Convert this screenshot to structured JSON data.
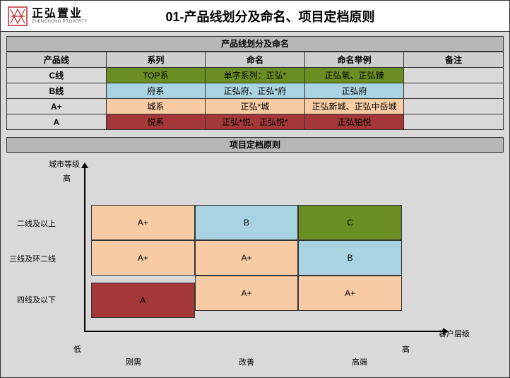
{
  "header": {
    "logo_cn": "正弘置业",
    "logo_en": "ZHENGHONG PROPERTY",
    "title": "01-产品线划分及命名、项目定档原则"
  },
  "colors": {
    "green": "#6b8e23",
    "blue": "#a9d3e0",
    "peach": "#f7cba3",
    "darkred": "#a43838",
    "grey_bg": "#d9d9d9",
    "header_grey": "#b7b7b7",
    "th_grey": "#cfcfcf",
    "logo_red": "#c1272d"
  },
  "section1": {
    "title": "产品线划分及命名",
    "headers": [
      "产品线",
      "系列",
      "命名",
      "命名举例",
      "备注"
    ],
    "rows": [
      {
        "line": "C线",
        "series": "TOP系",
        "naming": "单字系列：正弘*",
        "example": "正弘氧、正弘臻",
        "note": "",
        "color": "green"
      },
      {
        "line": "B线",
        "series": "府系",
        "naming": "正弘府、正弘*府",
        "example": "正弘府",
        "note": "",
        "color": "blue"
      },
      {
        "line": "A+",
        "series": "城系",
        "naming": "正弘*城",
        "example": "正弘新城、正弘中岳城",
        "note": "",
        "color": "peach"
      },
      {
        "line": "A",
        "series": "悦系",
        "naming": "正弘*悦、正弘悦*",
        "example": "正弘铂悦",
        "note": "",
        "color": "darkred"
      }
    ]
  },
  "section2": {
    "title": "项目定档原则",
    "y_axis_title": "城市等级",
    "x_axis_title": "客户层级",
    "y_high": "高",
    "x_low": "低",
    "x_high": "高",
    "y_labels": [
      "二线及以上",
      "三线及环二线",
      "四线及以下"
    ],
    "x_labels": [
      "刚需",
      "改善",
      "高端"
    ],
    "grid": [
      [
        {
          "t": "A+",
          "c": "peach"
        },
        {
          "t": "B",
          "c": "blue"
        },
        {
          "t": "C",
          "c": "green"
        }
      ],
      [
        {
          "t": "A+",
          "c": "peach"
        },
        {
          "t": "A+",
          "c": "peach"
        },
        {
          "t": "B",
          "c": "blue"
        }
      ],
      [
        {
          "t": "A",
          "c": "darkred"
        },
        {
          "t": "A+",
          "c": "peach"
        },
        {
          "t": "A+",
          "c": "peach"
        }
      ]
    ]
  }
}
